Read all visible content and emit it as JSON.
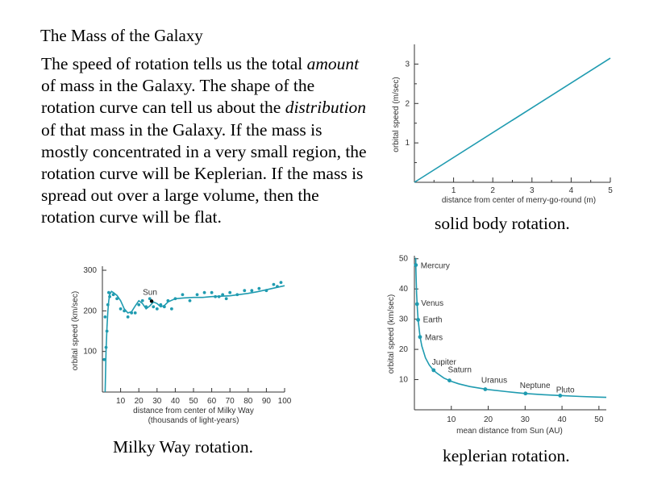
{
  "slide": {
    "title": "The Mass of the Galaxy",
    "body": [
      {
        "t": "The speed of rotation tells us the total "
      },
      {
        "t": "amount",
        "i": true
      },
      {
        "t": " of mass in the Galaxy.  The shape of the rotation curve can tell us about the "
      },
      {
        "t": "distribution",
        "i": true
      },
      {
        "t": " of that mass in the Galaxy.  If the mass is mostly concentrated in a very small region, the rotation curve will be Keplerian.  If the mass is spread out over a large volume, then the rotation curve will be flat."
      }
    ],
    "captions": {
      "solid": "solid body rotation.",
      "milky": "Milky Way rotation.",
      "kepler": "keplerian rotation."
    }
  },
  "colors": {
    "curve": "#1f9bb0",
    "axis": "#333333",
    "sun": "#000000"
  },
  "chart_data": [
    {
      "id": "solid",
      "type": "line",
      "xlabel": "distance from center of merry-go-round (m)",
      "ylabel": "orbital speed (m/sec)",
      "xlim": [
        0,
        5
      ],
      "ylim": [
        0,
        3.5
      ],
      "xticks": [
        1,
        2,
        3,
        4,
        5
      ],
      "xminor": [
        0.5,
        1.5,
        2.5,
        3.5,
        4.5
      ],
      "yticks": [
        1,
        2,
        3
      ],
      "yminor": [
        0.5,
        1.5,
        2.5
      ],
      "series": [
        {
          "x": [
            0,
            5
          ],
          "y": [
            0,
            3.15
          ]
        }
      ]
    },
    {
      "id": "milky",
      "type": "scatter",
      "xlabel": "distance from center of Milky Way",
      "xlabel2": "(thousands of light-years)",
      "ylabel": "orbital speed (km/sec)",
      "xlim": [
        0,
        100
      ],
      "ylim": [
        0,
        310
      ],
      "xticks": [
        10,
        20,
        30,
        40,
        50,
        60,
        70,
        80,
        90,
        100
      ],
      "yticks": [
        100,
        200,
        300
      ],
      "annotation": {
        "label": "Sun",
        "x": 27,
        "y": 220
      },
      "curve": {
        "x": [
          1.5,
          2,
          2.5,
          3,
          3.5,
          4,
          5,
          6,
          8,
          10,
          12,
          14,
          16,
          18,
          20,
          22,
          24,
          26,
          28,
          30,
          32,
          34,
          36,
          40,
          45,
          50,
          55,
          60,
          65,
          70,
          75,
          80,
          85,
          90,
          95,
          100
        ],
        "y": [
          0,
          100,
          160,
          200,
          225,
          240,
          248,
          245,
          238,
          225,
          205,
          195,
          198,
          212,
          225,
          218,
          205,
          212,
          222,
          218,
          210,
          213,
          222,
          230,
          232,
          233,
          233,
          235,
          236,
          237,
          240,
          243,
          247,
          252,
          257,
          262
        ]
      },
      "points": {
        "x": [
          1,
          1.5,
          2,
          2.5,
          3,
          3.5,
          4,
          6,
          8,
          10,
          12,
          14,
          16,
          18,
          20,
          22,
          24,
          26,
          28,
          30,
          32,
          34,
          36,
          38,
          40,
          44,
          48,
          52,
          56,
          60,
          62,
          64,
          66,
          68,
          70,
          74,
          78,
          82,
          86,
          90,
          94,
          96,
          98
        ],
        "y": [
          80,
          185,
          110,
          150,
          215,
          245,
          235,
          240,
          230,
          205,
          200,
          185,
          195,
          195,
          215,
          225,
          210,
          230,
          210,
          205,
          215,
          210,
          225,
          205,
          230,
          240,
          225,
          240,
          245,
          245,
          235,
          235,
          240,
          230,
          245,
          240,
          250,
          250,
          255,
          250,
          265,
          260,
          270
        ]
      }
    },
    {
      "id": "kepler",
      "type": "scatter",
      "xlabel": "mean distance from Sun (AU)",
      "ylabel": "orbital speed (km/sec)",
      "xlim": [
        0,
        52
      ],
      "ylim": [
        0,
        51
      ],
      "xticks": [
        10,
        20,
        30,
        40,
        50
      ],
      "yticks": [
        10,
        20,
        30,
        40,
        50
      ],
      "curve": {
        "x": [
          0.35,
          0.4,
          0.5,
          0.6,
          0.8,
          1,
          1.5,
          2,
          3,
          4,
          5,
          6,
          8,
          10,
          12,
          15,
          20,
          25,
          30,
          35,
          40,
          45,
          50,
          52
        ],
        "y": [
          50.3,
          47.1,
          42.1,
          38.5,
          33.3,
          29.8,
          24.3,
          21.1,
          17.2,
          14.9,
          13.3,
          12.2,
          10.5,
          9.4,
          8.6,
          7.7,
          6.7,
          6.0,
          5.4,
          5.0,
          4.7,
          4.4,
          4.2,
          4.1
        ]
      },
      "points": [
        {
          "name": "Mercury",
          "x": 0.39,
          "y": 47.9
        },
        {
          "name": "Venus",
          "x": 0.72,
          "y": 35.0
        },
        {
          "name": "Earth",
          "x": 1.0,
          "y": 29.8
        },
        {
          "name": "Mars",
          "x": 1.52,
          "y": 24.1
        },
        {
          "name": "Jupiter",
          "x": 5.2,
          "y": 13.1
        },
        {
          "name": "Saturn",
          "x": 9.5,
          "y": 9.7
        },
        {
          "name": "Uranus",
          "x": 19.2,
          "y": 6.8
        },
        {
          "name": "Neptune",
          "x": 30.1,
          "y": 5.4
        },
        {
          "name": "Pluto",
          "x": 39.5,
          "y": 4.7
        }
      ]
    }
  ]
}
